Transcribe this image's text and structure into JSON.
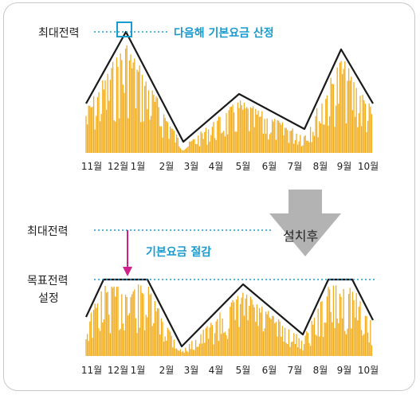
{
  "top_chart": {
    "max_power_label": "최대전력",
    "annotation": "다음해 기본요금 산정",
    "months": [
      "11월",
      "12월",
      "1월",
      "2월",
      "3월",
      "4월",
      "5월",
      "6월",
      "7월",
      "8월",
      "9월",
      "10월"
    ]
  },
  "arrow": {
    "label": "설치후"
  },
  "bottom_chart": {
    "max_power_label": "최대전력",
    "annotation": "기본요금 절감",
    "target_label_line1": "목표전력",
    "target_label_line2": "설정",
    "months": [
      "11월",
      "12월",
      "1월",
      "2월",
      "3월",
      "4월",
      "5월",
      "6월",
      "7월",
      "8월",
      "9월",
      "10월"
    ]
  },
  "colors": {
    "bar": "#f2ad1e",
    "line": "#1a1a1a",
    "cyan": "#1a9bd0",
    "magenta": "#d11f8c",
    "arrow": "#b3b3b3"
  }
}
